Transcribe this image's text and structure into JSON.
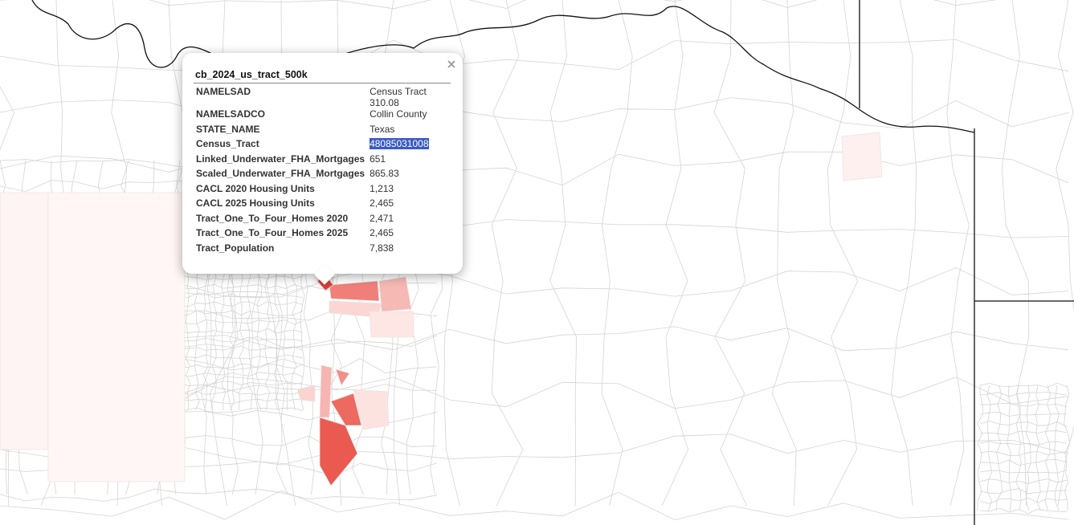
{
  "popup": {
    "title": "cb_2024_us_tract_500k",
    "rows": [
      [
        "NAMELSAD",
        "Census Tract 310.08"
      ],
      [
        "NAMELSADCO",
        "Collin County"
      ],
      [
        "STATE_NAME",
        "Texas"
      ],
      [
        "Census_Tract",
        "48085031008"
      ],
      [
        "Linked_Underwater_FHA_Mortgages",
        "651"
      ],
      [
        "Scaled_Underwater_FHA_Mortgages",
        "865.83"
      ],
      [
        "CACL 2020 Housing Units",
        "1,213"
      ],
      [
        "CACL 2025 Housing Units",
        "2,465"
      ],
      [
        "Tract_One_To_Four_Homes 2020",
        "2,471"
      ],
      [
        "Tract_One_To_Four_Homes 2025",
        "2,465"
      ],
      [
        "Tract_Population",
        "7,838"
      ]
    ]
  }
}
